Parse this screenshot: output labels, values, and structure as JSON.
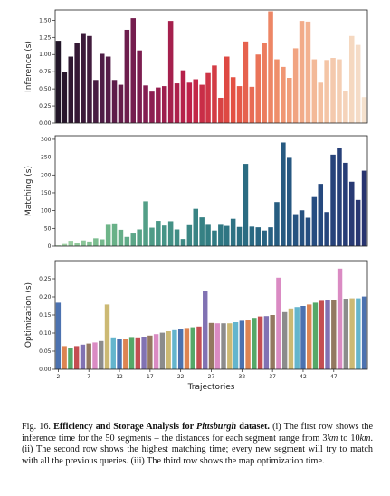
{
  "chart_data": [
    {
      "type": "bar",
      "panel": "inference",
      "ylabel": "Inference (s)",
      "xlabel": "",
      "ylim": [
        0,
        1.65
      ],
      "yticks": [
        "0.00",
        "0.25",
        "0.50",
        "0.75",
        "1.00",
        "1.25",
        "1.50"
      ],
      "ytick_values": [
        0,
        0.25,
        0.5,
        0.75,
        1.0,
        1.25,
        1.5
      ],
      "colormap": "rocket",
      "values": [
        1.2,
        0.75,
        0.97,
        1.17,
        1.3,
        1.27,
        0.63,
        1.01,
        0.97,
        0.63,
        0.56,
        1.36,
        1.53,
        1.06,
        0.55,
        0.46,
        0.52,
        0.54,
        1.49,
        0.58,
        0.77,
        0.59,
        0.64,
        0.56,
        0.73,
        0.84,
        0.37,
        0.97,
        0.67,
        0.54,
        1.19,
        0.53,
        1.0,
        1.17,
        1.63,
        0.93,
        0.82,
        0.66,
        1.09,
        1.49,
        1.48,
        0.93,
        0.59,
        0.92,
        0.95,
        0.93,
        0.47,
        1.27,
        1.14,
        0.38
      ]
    },
    {
      "type": "bar",
      "panel": "matching",
      "ylabel": "Matching (s)",
      "xlabel": "",
      "ylim": [
        0,
        310
      ],
      "yticks": [
        "0",
        "50",
        "100",
        "150",
        "200",
        "250",
        "300"
      ],
      "ytick_values": [
        0,
        50,
        100,
        150,
        200,
        250,
        300
      ],
      "colormap": "crest",
      "values": [
        2,
        6,
        15,
        8,
        16,
        13,
        22,
        19,
        60,
        64,
        46,
        26,
        38,
        47,
        126,
        52,
        71,
        58,
        70,
        47,
        20,
        59,
        105,
        81,
        60,
        44,
        60,
        57,
        77,
        54,
        231,
        55,
        53,
        44,
        53,
        124,
        291,
        248,
        90,
        101,
        80,
        138,
        175,
        96,
        257,
        275,
        234,
        181,
        130,
        212
      ]
    },
    {
      "type": "bar",
      "panel": "optimization",
      "ylabel": "Optimization (s)",
      "xlabel": "Trajectories",
      "ylim": [
        0,
        0.3
      ],
      "yticks": [
        "0.00",
        "0.05",
        "0.10",
        "0.15",
        "0.20",
        "0.25"
      ],
      "ytick_values": [
        0,
        0.05,
        0.1,
        0.15,
        0.2,
        0.25
      ],
      "xticks": [
        "2",
        "7",
        "12",
        "17",
        "22",
        "27",
        "32",
        "37",
        "42",
        "47"
      ],
      "colormap": "tab10",
      "values": [
        0.184,
        0.064,
        0.058,
        0.064,
        0.068,
        0.071,
        0.074,
        0.078,
        0.179,
        0.088,
        0.083,
        0.085,
        0.089,
        0.088,
        0.09,
        0.093,
        0.097,
        0.101,
        0.105,
        0.108,
        0.11,
        0.114,
        0.116,
        0.118,
        0.216,
        0.128,
        0.127,
        0.127,
        0.127,
        0.13,
        0.134,
        0.136,
        0.142,
        0.146,
        0.147,
        0.15,
        0.253,
        0.158,
        0.168,
        0.172,
        0.175,
        0.179,
        0.184,
        0.189,
        0.19,
        0.191,
        0.278,
        0.195,
        0.196,
        0.196,
        0.201
      ]
    }
  ],
  "caption": {
    "lead": "Fig. 16.",
    "title_prefix": "Efficiency and Storage Analysis for ",
    "title_emph": "Pittsburgh",
    "title_suffix": " dataset.",
    "text_1": " (i) The first row shows the inference time for the 50 segments – the distances for each segment range from 3",
    "km_1": "km",
    "text_2": " to 10",
    "km_2": "km",
    "text_3": ". (ii) The second row shows the highest matching time; every new segment will try to match with all the previous queries. (iii) The third row shows the map optimization time."
  }
}
